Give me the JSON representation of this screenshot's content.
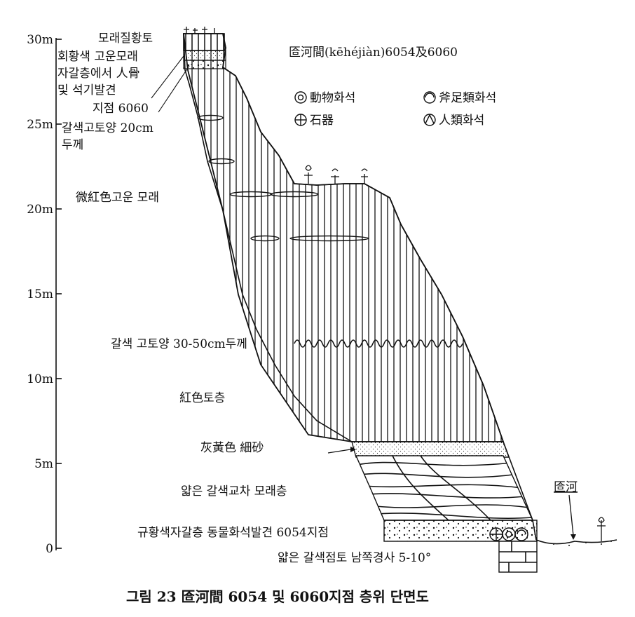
{
  "axis": {
    "ticks": [
      {
        "label": "30m",
        "value": 30
      },
      {
        "label": "25m",
        "value": 25
      },
      {
        "label": "20m",
        "value": 20
      },
      {
        "label": "15m",
        "value": 15
      },
      {
        "label": "10m",
        "value": 10
      },
      {
        "label": "5m",
        "value": 5
      },
      {
        "label": "0",
        "value": 0
      }
    ]
  },
  "header": "匼河間(kēhéjiàn)6054及6060",
  "legend": {
    "animal": "動物화석",
    "bivalve": "斧足類화석",
    "stone": "石器",
    "human": "人類화석"
  },
  "labels": {
    "top_soil": "모래질황토",
    "grey_sand": "회황색 고운모래",
    "gravel_find_1": "자갈층에서 人骨",
    "gravel_find_2": "및 석기발견",
    "site_6060": "지점 6060",
    "paleosol_top_1": "갈색고토양 20cm",
    "paleosol_top_2": "두께",
    "reddish_sand": "微紅色고운 모래",
    "paleosol_mid": "갈색 고토양 30-50cm두께",
    "red_soil": "紅色토층",
    "fine_sand": "灰黃色 細砂",
    "cross_bed": "얇은 갈색교차 모래층",
    "gravel_6054": "규황색자갈층 동물화석발견 6054지점",
    "clay": "얇은 갈색점토 남쪽경사 5-10°",
    "river": "匼河"
  },
  "caption": "그림 23  匼河間 6054 및 6060지점 층위 단면도"
}
